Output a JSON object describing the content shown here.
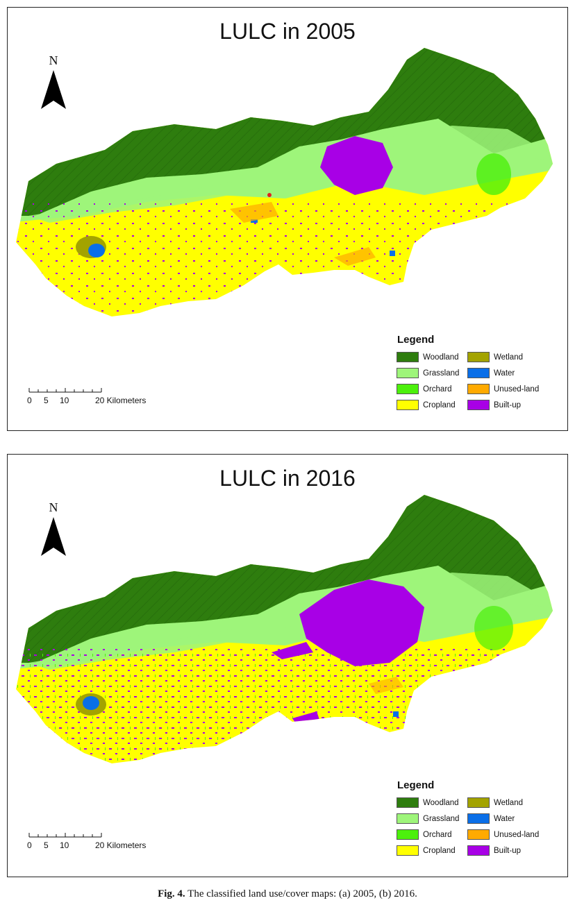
{
  "panels": [
    {
      "title": "LULC in 2005",
      "north_label": "N",
      "legend_title": "Legend"
    },
    {
      "title": "LULC in 2016",
      "north_label": "N",
      "legend_title": "Legend"
    }
  ],
  "legend": [
    {
      "label": "Woodland",
      "color": "#2e7d0e"
    },
    {
      "label": "Wetland",
      "color": "#a3a300"
    },
    {
      "label": "Grassland",
      "color": "#9ef57a"
    },
    {
      "label": "Water",
      "color": "#0a6fe8"
    },
    {
      "label": "Orchard",
      "color": "#4cf00c"
    },
    {
      "label": "Unused-land",
      "color": "#ffaa00"
    },
    {
      "label": "Cropland",
      "color": "#ffff00"
    },
    {
      "label": "Built-up",
      "color": "#a800e6"
    }
  ],
  "scalebar": {
    "ticks": [
      "0",
      "5",
      "10",
      "20 Kilometers"
    ]
  },
  "caption": {
    "figure_label": "Fig. 4.",
    "text": " The classified land use/cover maps: (a) 2005, (b) 2016."
  }
}
